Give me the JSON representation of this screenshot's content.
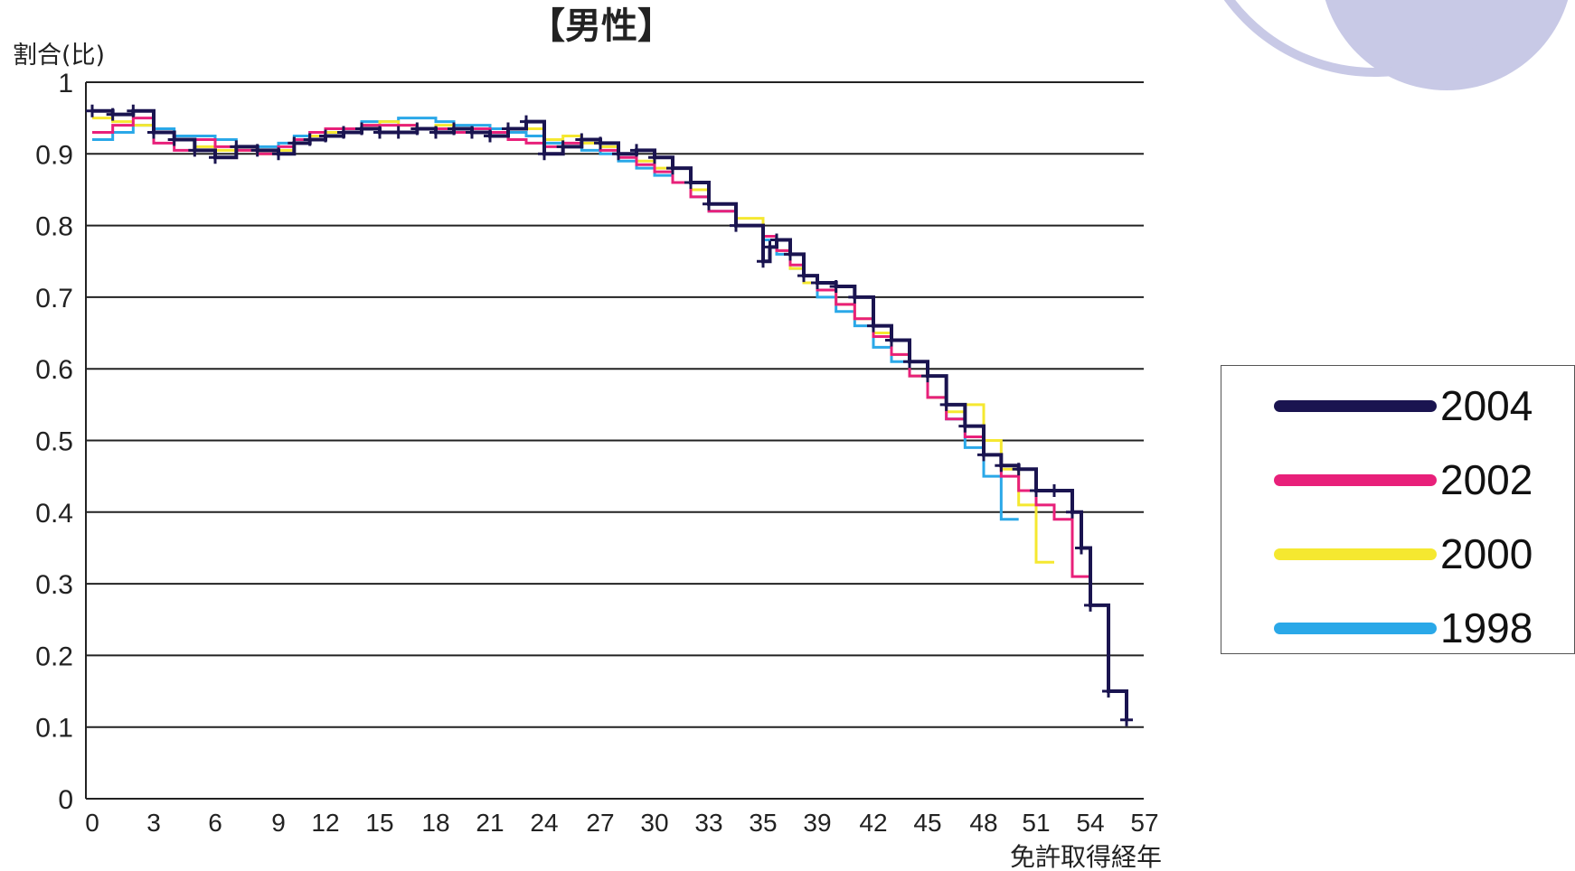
{
  "chart_data": {
    "type": "line",
    "title": "【男性】",
    "ylabel": "割合(比)",
    "xlabel": "免許取得経年",
    "ylim": [
      0,
      1
    ],
    "yticks": [
      "0",
      "0.1",
      "0.2",
      "0.3",
      "0.4",
      "0.5",
      "0.6",
      "0.7",
      "0.8",
      "0.9",
      "1"
    ],
    "xticks": [
      "0",
      "3",
      "6",
      "9",
      "12",
      "15",
      "18",
      "21",
      "24",
      "27",
      "30",
      "33",
      "35",
      "39",
      "42",
      "45",
      "48",
      "51",
      "54",
      "57"
    ],
    "grid": true,
    "legend_position": "right",
    "series": [
      {
        "name": "2004",
        "color": "#1a1450",
        "points": [
          [
            0,
            0.96
          ],
          [
            1,
            0.955
          ],
          [
            2,
            0.96
          ],
          [
            3,
            0.93
          ],
          [
            4,
            0.92
          ],
          [
            5,
            0.905
          ],
          [
            6,
            0.895
          ],
          [
            7,
            0.91
          ],
          [
            8,
            0.905
          ],
          [
            9,
            0.9
          ],
          [
            10,
            0.915
          ],
          [
            11,
            0.92
          ],
          [
            12,
            0.925
          ],
          [
            13,
            0.93
          ],
          [
            14,
            0.935
          ],
          [
            15,
            0.93
          ],
          [
            16,
            0.93
          ],
          [
            17,
            0.935
          ],
          [
            18,
            0.93
          ],
          [
            19,
            0.935
          ],
          [
            20,
            0.93
          ],
          [
            21,
            0.925
          ],
          [
            22,
            0.935
          ],
          [
            23,
            0.945
          ],
          [
            24,
            0.9
          ],
          [
            25,
            0.91
          ],
          [
            26,
            0.92
          ],
          [
            27,
            0.915
          ],
          [
            28,
            0.9
          ],
          [
            29,
            0.905
          ],
          [
            30,
            0.895
          ],
          [
            31,
            0.88
          ],
          [
            32,
            0.86
          ],
          [
            33,
            0.83
          ],
          [
            34,
            0.8
          ],
          [
            35,
            0.75
          ],
          [
            35.5,
            0.77
          ],
          [
            36,
            0.78
          ],
          [
            37,
            0.76
          ],
          [
            38,
            0.73
          ],
          [
            39,
            0.72
          ],
          [
            40,
            0.715
          ],
          [
            41,
            0.7
          ],
          [
            42,
            0.66
          ],
          [
            43,
            0.64
          ],
          [
            44,
            0.61
          ],
          [
            45,
            0.59
          ],
          [
            46,
            0.55
          ],
          [
            47,
            0.52
          ],
          [
            48,
            0.48
          ],
          [
            49,
            0.465
          ],
          [
            50,
            0.46
          ],
          [
            51,
            0.43
          ],
          [
            52,
            0.43
          ],
          [
            53,
            0.4
          ],
          [
            53.5,
            0.35
          ],
          [
            54,
            0.27
          ],
          [
            55,
            0.15
          ],
          [
            56,
            0.11
          ]
        ]
      },
      {
        "name": "2002",
        "color": "#e8207a",
        "points": [
          [
            0,
            0.93
          ],
          [
            1,
            0.94
          ],
          [
            2,
            0.95
          ],
          [
            3,
            0.915
          ],
          [
            4,
            0.905
          ],
          [
            5,
            0.92
          ],
          [
            6,
            0.91
          ],
          [
            7,
            0.905
          ],
          [
            8,
            0.9
          ],
          [
            9,
            0.91
          ],
          [
            10,
            0.92
          ],
          [
            11,
            0.93
          ],
          [
            12,
            0.935
          ],
          [
            13,
            0.935
          ],
          [
            14,
            0.94
          ],
          [
            15,
            0.94
          ],
          [
            16,
            0.94
          ],
          [
            17,
            0.935
          ],
          [
            18,
            0.935
          ],
          [
            19,
            0.93
          ],
          [
            20,
            0.935
          ],
          [
            21,
            0.93
          ],
          [
            22,
            0.92
          ],
          [
            23,
            0.915
          ],
          [
            24,
            0.91
          ],
          [
            25,
            0.915
          ],
          [
            26,
            0.92
          ],
          [
            27,
            0.905
          ],
          [
            28,
            0.895
          ],
          [
            29,
            0.885
          ],
          [
            30,
            0.875
          ],
          [
            31,
            0.86
          ],
          [
            32,
            0.84
          ],
          [
            33,
            0.82
          ],
          [
            34,
            0.8
          ],
          [
            35,
            0.785
          ],
          [
            36,
            0.765
          ],
          [
            37,
            0.745
          ],
          [
            38,
            0.73
          ],
          [
            39,
            0.71
          ],
          [
            40,
            0.69
          ],
          [
            41,
            0.67
          ],
          [
            42,
            0.645
          ],
          [
            43,
            0.62
          ],
          [
            44,
            0.59
          ],
          [
            45,
            0.56
          ],
          [
            46,
            0.53
          ],
          [
            47,
            0.505
          ],
          [
            48,
            0.48
          ],
          [
            49,
            0.45
          ],
          [
            50,
            0.43
          ],
          [
            51,
            0.41
          ],
          [
            52,
            0.39
          ],
          [
            53,
            0.31
          ],
          [
            54,
            0.27
          ]
        ]
      },
      {
        "name": "2000",
        "color": "#f5e830",
        "points": [
          [
            0,
            0.95
          ],
          [
            1,
            0.945
          ],
          [
            2,
            0.94
          ],
          [
            3,
            0.93
          ],
          [
            4,
            0.92
          ],
          [
            5,
            0.91
          ],
          [
            6,
            0.905
          ],
          [
            7,
            0.905
          ],
          [
            8,
            0.9
          ],
          [
            9,
            0.905
          ],
          [
            10,
            0.92
          ],
          [
            11,
            0.925
          ],
          [
            12,
            0.93
          ],
          [
            13,
            0.935
          ],
          [
            14,
            0.94
          ],
          [
            15,
            0.945
          ],
          [
            16,
            0.94
          ],
          [
            17,
            0.935
          ],
          [
            18,
            0.94
          ],
          [
            19,
            0.935
          ],
          [
            20,
            0.93
          ],
          [
            21,
            0.93
          ],
          [
            22,
            0.935
          ],
          [
            23,
            0.935
          ],
          [
            24,
            0.92
          ],
          [
            25,
            0.925
          ],
          [
            26,
            0.915
          ],
          [
            27,
            0.91
          ],
          [
            28,
            0.9
          ],
          [
            29,
            0.89
          ],
          [
            30,
            0.88
          ],
          [
            31,
            0.86
          ],
          [
            32,
            0.85
          ],
          [
            33,
            0.83
          ],
          [
            34,
            0.81
          ],
          [
            35,
            0.785
          ],
          [
            36,
            0.765
          ],
          [
            37,
            0.74
          ],
          [
            38,
            0.72
          ],
          [
            39,
            0.71
          ],
          [
            40,
            0.69
          ],
          [
            41,
            0.67
          ],
          [
            42,
            0.65
          ],
          [
            43,
            0.62
          ],
          [
            44,
            0.59
          ],
          [
            45,
            0.56
          ],
          [
            46,
            0.54
          ],
          [
            47,
            0.55
          ],
          [
            48,
            0.5
          ],
          [
            49,
            0.46
          ],
          [
            50,
            0.41
          ],
          [
            51,
            0.33
          ],
          [
            52,
            0.33
          ]
        ]
      },
      {
        "name": "1998",
        "color": "#2aa8e8",
        "points": [
          [
            0,
            0.92
          ],
          [
            1,
            0.93
          ],
          [
            2,
            0.94
          ],
          [
            3,
            0.935
          ],
          [
            4,
            0.925
          ],
          [
            5,
            0.925
          ],
          [
            6,
            0.92
          ],
          [
            7,
            0.91
          ],
          [
            8,
            0.91
          ],
          [
            9,
            0.915
          ],
          [
            10,
            0.925
          ],
          [
            11,
            0.93
          ],
          [
            12,
            0.935
          ],
          [
            13,
            0.935
          ],
          [
            14,
            0.945
          ],
          [
            15,
            0.945
          ],
          [
            16,
            0.95
          ],
          [
            17,
            0.95
          ],
          [
            18,
            0.945
          ],
          [
            19,
            0.94
          ],
          [
            20,
            0.94
          ],
          [
            21,
            0.935
          ],
          [
            22,
            0.93
          ],
          [
            23,
            0.925
          ],
          [
            24,
            0.915
          ],
          [
            25,
            0.91
          ],
          [
            26,
            0.905
          ],
          [
            27,
            0.9
          ],
          [
            28,
            0.89
          ],
          [
            29,
            0.88
          ],
          [
            30,
            0.87
          ],
          [
            31,
            0.86
          ],
          [
            32,
            0.84
          ],
          [
            33,
            0.82
          ],
          [
            34,
            0.8
          ],
          [
            35,
            0.78
          ],
          [
            36,
            0.76
          ],
          [
            37,
            0.74
          ],
          [
            38,
            0.72
          ],
          [
            39,
            0.7
          ],
          [
            40,
            0.68
          ],
          [
            41,
            0.66
          ],
          [
            42,
            0.63
          ],
          [
            43,
            0.61
          ],
          [
            44,
            0.59
          ],
          [
            45,
            0.56
          ],
          [
            46,
            0.53
          ],
          [
            47,
            0.49
          ],
          [
            48,
            0.45
          ],
          [
            49,
            0.39
          ],
          [
            50,
            0.39
          ]
        ]
      }
    ]
  }
}
